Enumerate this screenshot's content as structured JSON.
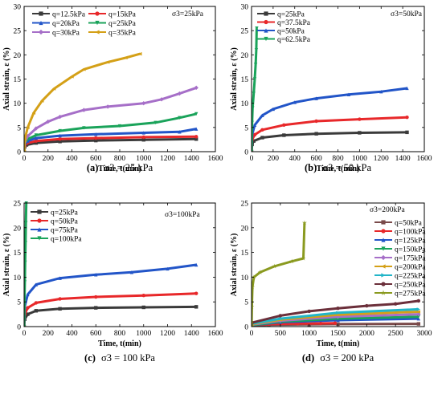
{
  "chart_data": [
    {
      "type": "line",
      "panel_letter": "(a)",
      "caption": "σ3 = 25 kPa",
      "sigma_label": "σ3=25kPa",
      "xlabel": "Time, t(min)",
      "ylabel": "Axial strain, ε (%)",
      "xlim": [
        0,
        1600
      ],
      "ylim": [
        0,
        30
      ],
      "xticks": [
        0,
        200,
        400,
        600,
        800,
        1000,
        1200,
        1400,
        1600
      ],
      "yticks": [
        0,
        5,
        10,
        15,
        20,
        25,
        30
      ],
      "legend_columns": 2,
      "series": [
        {
          "name": "q=12.5kPa",
          "color": "#3a3a3a",
          "marker": "square",
          "points": [
            [
              0,
              0
            ],
            [
              5,
              1.0
            ],
            [
              20,
              1.4
            ],
            [
              100,
              1.8
            ],
            [
              300,
              2.1
            ],
            [
              600,
              2.3
            ],
            [
              1000,
              2.45
            ],
            [
              1440,
              2.6
            ]
          ]
        },
        {
          "name": "q=15kPa",
          "color": "#e8282a",
          "marker": "circle",
          "points": [
            [
              0,
              0
            ],
            [
              5,
              1.2
            ],
            [
              20,
              1.7
            ],
            [
              100,
              2.2
            ],
            [
              300,
              2.6
            ],
            [
              600,
              2.8
            ],
            [
              1000,
              3.0
            ],
            [
              1440,
              3.1
            ]
          ]
        },
        {
          "name": "q=20kPa",
          "color": "#2255c8",
          "marker": "triangle-up",
          "points": [
            [
              0,
              0
            ],
            [
              5,
              1.5
            ],
            [
              30,
              2.2
            ],
            [
              100,
              2.8
            ],
            [
              300,
              3.3
            ],
            [
              600,
              3.6
            ],
            [
              1000,
              3.9
            ],
            [
              1300,
              4.1
            ],
            [
              1440,
              4.7
            ]
          ]
        },
        {
          "name": "q=25kPa",
          "color": "#1aa35a",
          "marker": "triangle-down",
          "points": [
            [
              0,
              0
            ],
            [
              5,
              1.8
            ],
            [
              30,
              2.6
            ],
            [
              100,
              3.4
            ],
            [
              300,
              4.3
            ],
            [
              500,
              4.9
            ],
            [
              800,
              5.3
            ],
            [
              1100,
              6.0
            ],
            [
              1300,
              7.0
            ],
            [
              1440,
              7.8
            ]
          ]
        },
        {
          "name": "q=30kPa",
          "color": "#a66fc8",
          "marker": "diamond",
          "points": [
            [
              0,
              0
            ],
            [
              5,
              2.0
            ],
            [
              30,
              3.2
            ],
            [
              100,
              4.8
            ],
            [
              200,
              6.2
            ],
            [
              300,
              7.2
            ],
            [
              500,
              8.6
            ],
            [
              700,
              9.3
            ],
            [
              1000,
              10.0
            ],
            [
              1150,
              10.8
            ],
            [
              1300,
              12.0
            ],
            [
              1440,
              13.2
            ]
          ]
        },
        {
          "name": "q=35kPa",
          "color": "#d4a017",
          "marker": "triangle-left",
          "points": [
            [
              0,
              0
            ],
            [
              5,
              2.5
            ],
            [
              30,
              5.0
            ],
            [
              80,
              8.0
            ],
            [
              150,
              10.5
            ],
            [
              250,
              13.0
            ],
            [
              400,
              15.5
            ],
            [
              500,
              17.0
            ],
            [
              700,
              18.5
            ],
            [
              850,
              19.4
            ],
            [
              970,
              20.2
            ]
          ]
        }
      ]
    },
    {
      "type": "line",
      "panel_letter": "(b)",
      "caption": "σ3 = 50 kPa",
      "sigma_label": "σ3=50kPa",
      "xlabel": "Time, t(min)",
      "ylabel": "Axial strain, ε (%)",
      "xlim": [
        0,
        1600
      ],
      "ylim": [
        0,
        30
      ],
      "xticks": [
        0,
        200,
        400,
        600,
        800,
        1000,
        1200,
        1400,
        1600
      ],
      "yticks": [
        0,
        5,
        10,
        15,
        20,
        25,
        30
      ],
      "legend_columns": 1,
      "series": [
        {
          "name": "q=25kPa",
          "color": "#3a3a3a",
          "marker": "square",
          "points": [
            [
              0,
              0
            ],
            [
              5,
              1.5
            ],
            [
              20,
              2.2
            ],
            [
              100,
              2.9
            ],
            [
              300,
              3.4
            ],
            [
              600,
              3.7
            ],
            [
              1000,
              3.9
            ],
            [
              1440,
              4.0
            ]
          ]
        },
        {
          "name": "q=37.5kPa",
          "color": "#e8282a",
          "marker": "circle",
          "points": [
            [
              0,
              0
            ],
            [
              5,
              2.5
            ],
            [
              30,
              3.5
            ],
            [
              100,
              4.5
            ],
            [
              300,
              5.5
            ],
            [
              600,
              6.3
            ],
            [
              1000,
              6.7
            ],
            [
              1440,
              7.1
            ]
          ]
        },
        {
          "name": "q=50kPa",
          "color": "#2255c8",
          "marker": "triangle-up",
          "points": [
            [
              0,
              0
            ],
            [
              5,
              3.5
            ],
            [
              30,
              5.5
            ],
            [
              100,
              7.5
            ],
            [
              200,
              8.8
            ],
            [
              400,
              10.2
            ],
            [
              600,
              11.0
            ],
            [
              900,
              11.8
            ],
            [
              1200,
              12.4
            ],
            [
              1440,
              13.1
            ]
          ]
        },
        {
          "name": "q=62.5kPa",
          "color": "#1aa35a",
          "marker": "triangle-down",
          "points": [
            [
              0,
              0
            ],
            [
              5,
              6
            ],
            [
              10,
              9
            ],
            [
              20,
              12
            ],
            [
              30,
              15
            ],
            [
              38,
              18
            ],
            [
              44,
              21
            ],
            [
              48,
              25.5
            ]
          ]
        }
      ]
    },
    {
      "type": "line",
      "panel_letter": "(c)",
      "caption": "σ3 = 100 kPa",
      "sigma_label": "σ3=100kPa",
      "xlabel": "Time, t(min)",
      "ylabel": "Axial strain, ε (%)",
      "xlim": [
        0,
        1600
      ],
      "ylim": [
        0,
        25
      ],
      "xticks": [
        0,
        200,
        400,
        600,
        800,
        1000,
        1200,
        1400,
        1600
      ],
      "yticks": [
        0,
        5,
        10,
        15,
        20,
        25
      ],
      "legend_columns": 1,
      "series": [
        {
          "name": "q=25kPa",
          "color": "#3a3a3a",
          "marker": "square",
          "points": [
            [
              0,
              0
            ],
            [
              5,
              1.5
            ],
            [
              30,
              2.5
            ],
            [
              100,
              3.2
            ],
            [
              300,
              3.6
            ],
            [
              600,
              3.8
            ],
            [
              1000,
              3.9
            ],
            [
              1440,
              4.0
            ]
          ]
        },
        {
          "name": "q=50kPa",
          "color": "#e8282a",
          "marker": "circle",
          "points": [
            [
              0,
              0
            ],
            [
              5,
              2.5
            ],
            [
              30,
              3.8
            ],
            [
              100,
              4.8
            ],
            [
              300,
              5.6
            ],
            [
              600,
              6.0
            ],
            [
              1000,
              6.3
            ],
            [
              1440,
              6.7
            ]
          ]
        },
        {
          "name": "q=75kPa",
          "color": "#2255c8",
          "marker": "triangle-up",
          "points": [
            [
              0,
              0
            ],
            [
              5,
              4
            ],
            [
              30,
              6.5
            ],
            [
              100,
              8.5
            ],
            [
              300,
              9.8
            ],
            [
              600,
              10.5
            ],
            [
              900,
              11.0
            ],
            [
              1200,
              11.7
            ],
            [
              1440,
              12.5
            ]
          ]
        },
        {
          "name": "q=100kPa",
          "color": "#1aa35a",
          "marker": "triangle-down",
          "points": [
            [
              0,
              0
            ],
            [
              3,
              5
            ],
            [
              6,
              9
            ],
            [
              9,
              13
            ],
            [
              12,
              17
            ],
            [
              15,
              21
            ],
            [
              18,
              25
            ]
          ]
        }
      ]
    },
    {
      "type": "line",
      "panel_letter": "(d)",
      "caption": "σ3 = 200 kPa",
      "sigma_label": "σ3=200kPa",
      "xlabel": "Time, t(min)",
      "ylabel": "Axial strain, ε (%)",
      "xlim": [
        0,
        3000
      ],
      "ylim": [
        0,
        25
      ],
      "xticks": [
        0,
        500,
        1000,
        1500,
        2000,
        2500,
        3000
      ],
      "yticks": [
        0,
        5,
        10,
        15,
        20,
        25
      ],
      "legend_columns": 1,
      "series": [
        {
          "name": "q=50kPa",
          "color": "#7a4a4a",
          "marker": "square",
          "points": [
            [
              0,
              0
            ],
            [
              10,
              0.2
            ],
            [
              300,
              0.35
            ],
            [
              1000,
              0.45
            ],
            [
              1500,
              0.5
            ],
            [
              2900,
              0.55
            ]
          ]
        },
        {
          "name": "q=100kPa",
          "color": "#e8282a",
          "marker": "circle",
          "points": [
            [
              0,
              0
            ],
            [
              10,
              0.3
            ],
            [
              300,
              0.5
            ],
            [
              800,
              0.6
            ],
            [
              1200,
              0.65
            ],
            [
              1450,
              0.7
            ]
          ]
        },
        {
          "name": "q=125kPa",
          "color": "#2255c8",
          "marker": "triangle-up",
          "points": [
            [
              0,
              0
            ],
            [
              10,
              0.3
            ],
            [
              500,
              0.9
            ],
            [
              1500,
              1.3
            ],
            [
              2900,
              1.6
            ]
          ]
        },
        {
          "name": "q=150kPa",
          "color": "#1aa35a",
          "marker": "triangle-down",
          "points": [
            [
              0,
              0
            ],
            [
              10,
              0.3
            ],
            [
              500,
              1.0
            ],
            [
              1500,
              1.6
            ],
            [
              2900,
              2.0
            ]
          ]
        },
        {
          "name": "q=175kPa",
          "color": "#a66fc8",
          "marker": "diamond",
          "points": [
            [
              0,
              0
            ],
            [
              10,
              0.4
            ],
            [
              500,
              1.2
            ],
            [
              1500,
              2.0
            ],
            [
              2900,
              2.5
            ]
          ]
        },
        {
          "name": "q=200kPa",
          "color": "#d4a017",
          "marker": "triangle-left",
          "points": [
            [
              0,
              0
            ],
            [
              10,
              0.5
            ],
            [
              500,
              1.4
            ],
            [
              1500,
              2.4
            ],
            [
              2900,
              3.0
            ]
          ]
        },
        {
          "name": "q=225kPa",
          "color": "#22b5c8",
          "marker": "triangle-right",
          "points": [
            [
              0,
              0
            ],
            [
              10,
              0.6
            ],
            [
              500,
              1.6
            ],
            [
              1500,
              2.8
            ],
            [
              2900,
              3.5
            ]
          ]
        },
        {
          "name": "q=250kPa",
          "color": "#6b2f3a",
          "marker": "hexagon",
          "points": [
            [
              0,
              0
            ],
            [
              10,
              0.8
            ],
            [
              500,
              2.2
            ],
            [
              1000,
              3.1
            ],
            [
              1500,
              3.7
            ],
            [
              2000,
              4.2
            ],
            [
              2500,
              4.6
            ],
            [
              2900,
              5.2
            ]
          ]
        },
        {
          "name": "q=275kPa",
          "color": "#8a9a1f",
          "marker": "star",
          "points": [
            [
              0,
              0
            ],
            [
              5,
              4
            ],
            [
              15,
              8
            ],
            [
              40,
              10
            ],
            [
              150,
              11
            ],
            [
              400,
              12.2
            ],
            [
              700,
              13.2
            ],
            [
              900,
              13.8
            ],
            [
              920,
              21
            ]
          ]
        }
      ]
    }
  ]
}
